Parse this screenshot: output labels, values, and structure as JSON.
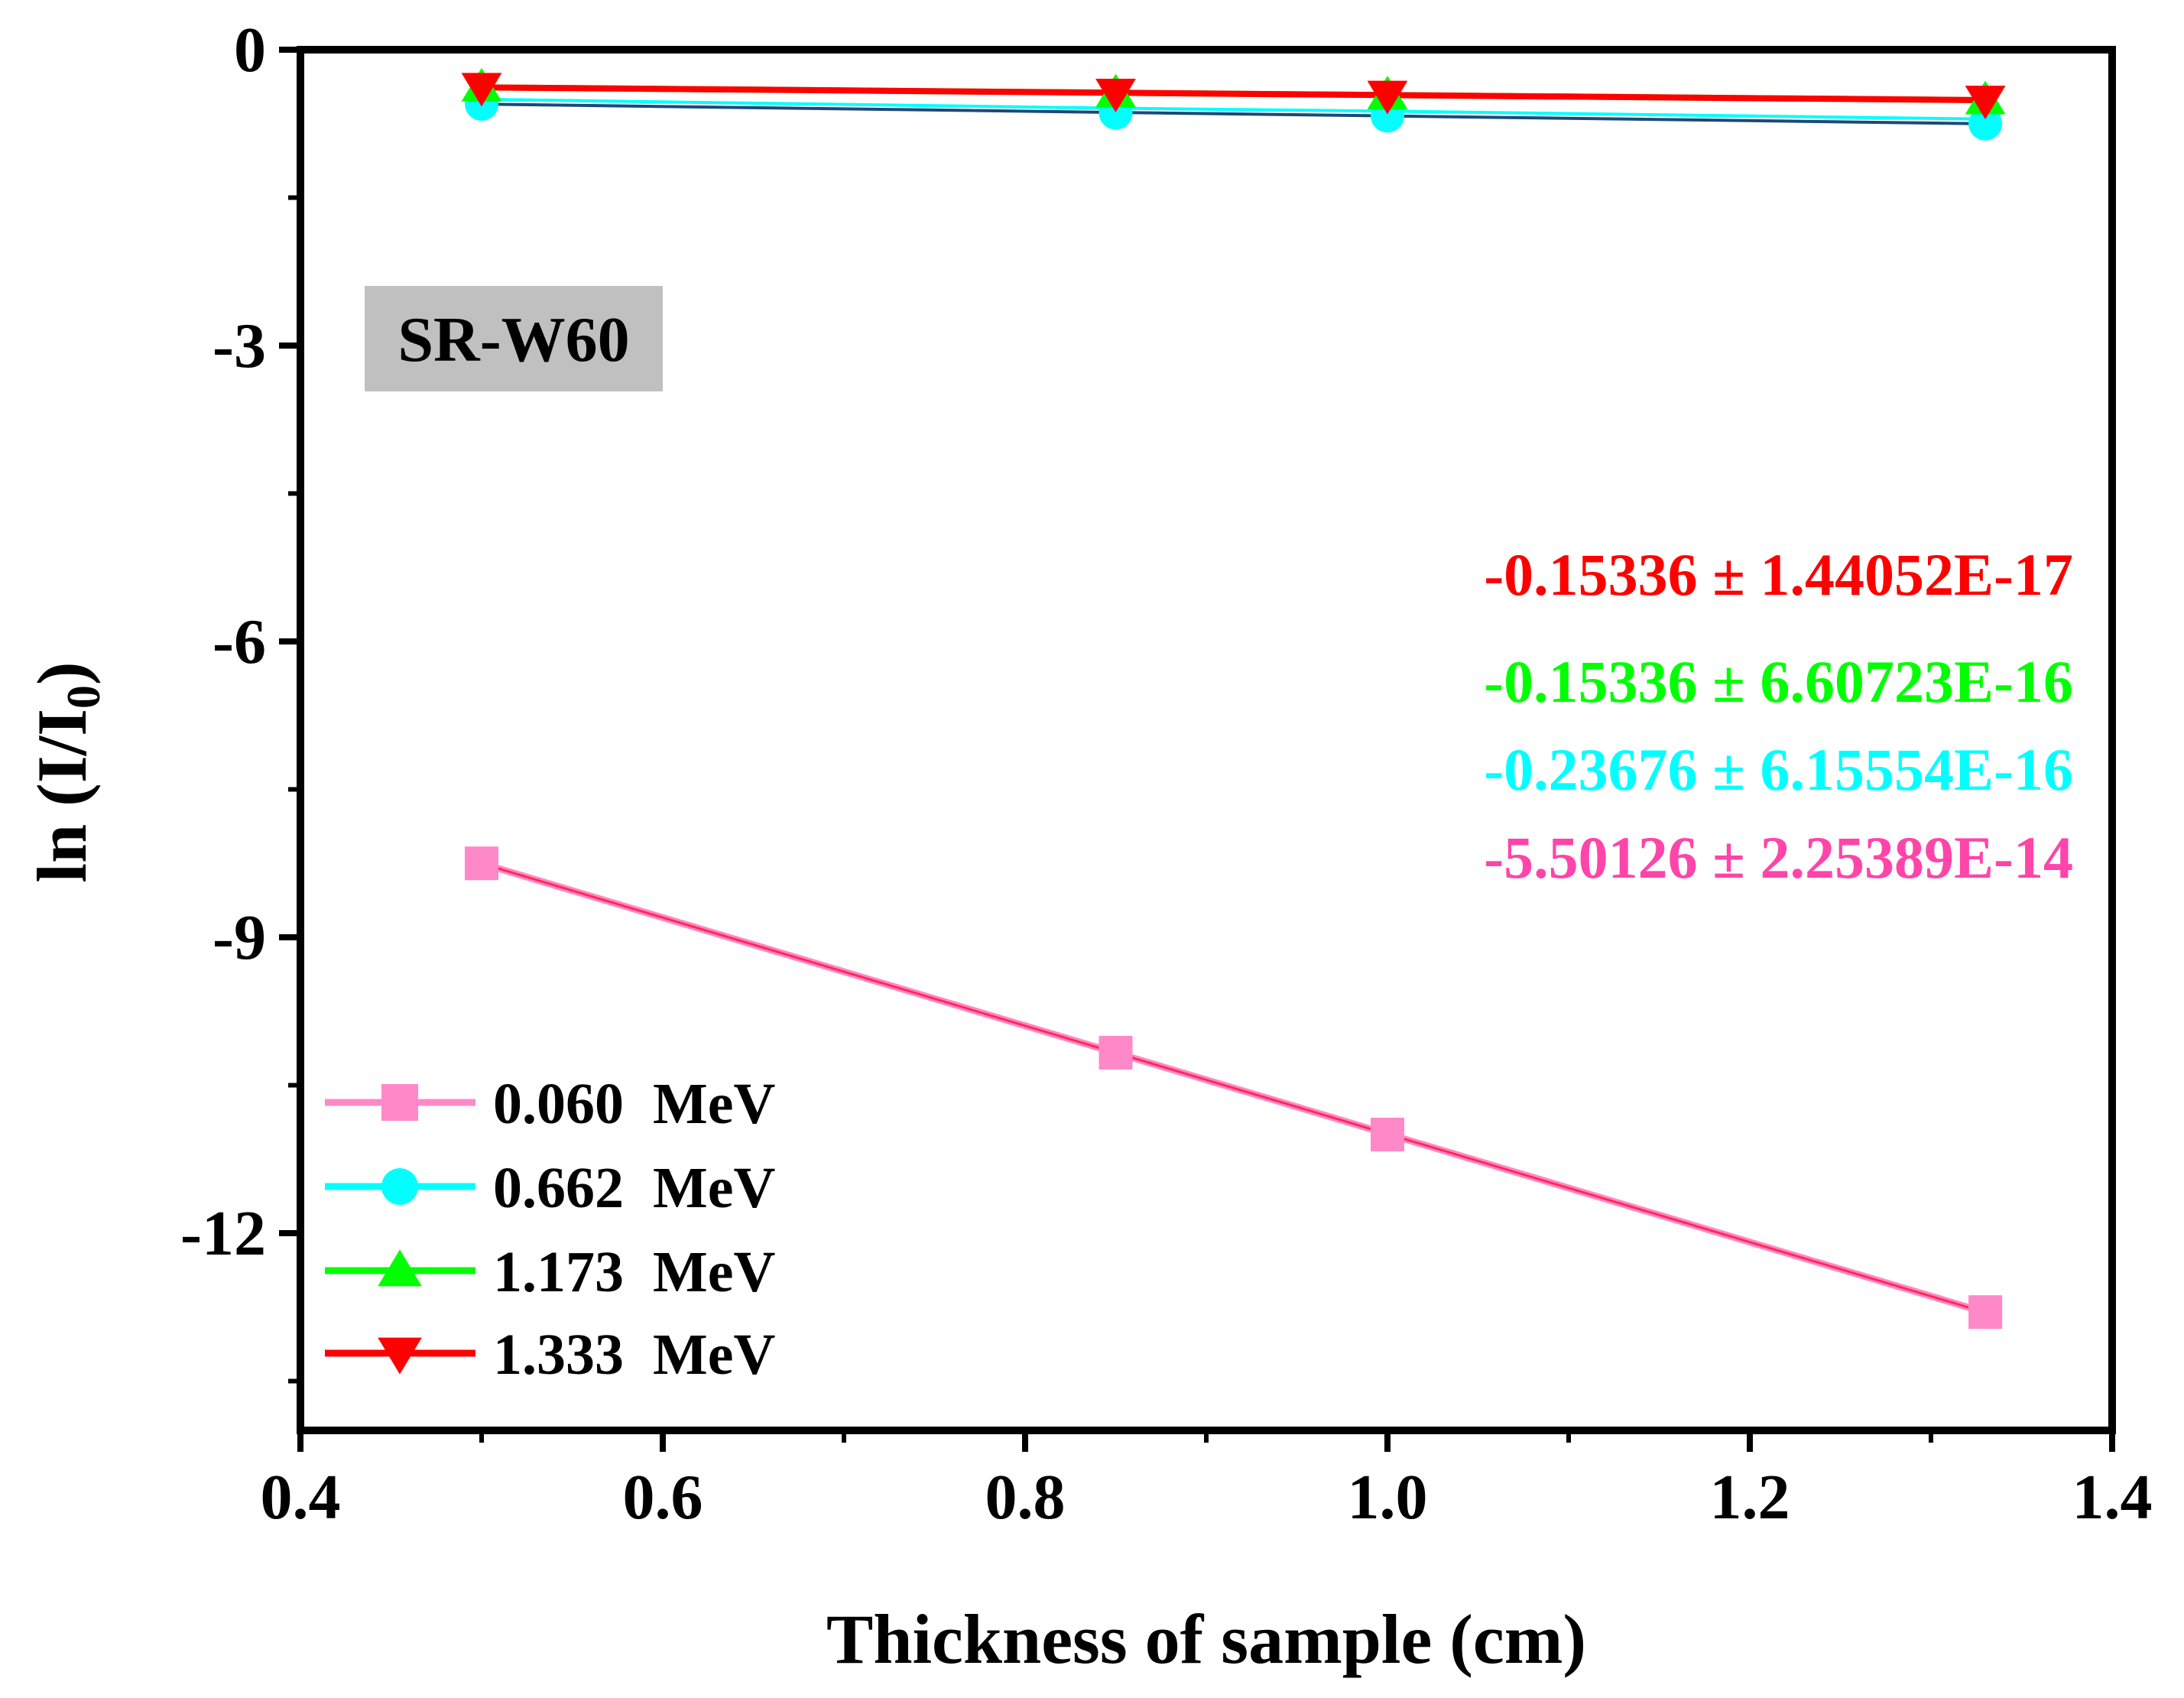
{
  "chart_data": {
    "type": "line",
    "title": "",
    "xlabel": "Thickness of sample (cm)",
    "ylabel_main": "ln (I/I",
    "ylabel_sub": "0",
    "ylabel_end": ")",
    "xlim": [
      0.4,
      1.4
    ],
    "ylim": [
      -14,
      0
    ],
    "x_ticks": [
      0.4,
      0.6,
      0.8,
      1.0,
      1.2,
      1.4
    ],
    "x_tick_labels": [
      "0.4",
      "0.6",
      "0.8",
      "1.0",
      "1.2",
      "1.4"
    ],
    "y_ticks": [
      0,
      -3,
      -6,
      -9,
      -12
    ],
    "y_tick_labels": [
      "0",
      "-3",
      "-6",
      "-9",
      "-12"
    ],
    "grid": false,
    "legend_position": "bottom-left",
    "sample_label": "SR-W60",
    "x": [
      0.5,
      0.85,
      1.0,
      1.33
    ],
    "series": [
      {
        "name": "0.060  MeV",
        "marker": "square",
        "color": "#ff88c8",
        "fit_color": "#ff2a55",
        "values": [
          -8.25,
          -10.17,
          -11.0,
          -12.8
        ]
      },
      {
        "name": "0.662  MeV",
        "marker": "circle",
        "color": "#00ffff",
        "fit_color": "#1a4a7a",
        "values": [
          -0.55,
          -0.64,
          -0.67,
          -0.75
        ]
      },
      {
        "name": "1.173  MeV",
        "marker": "triangle-up",
        "color": "#00ff00",
        "fit_color": "#00ff00",
        "values": [
          -0.38,
          -0.44,
          -0.46,
          -0.51
        ]
      },
      {
        "name": "1.333  MeV",
        "marker": "triangle-down",
        "color": "#ff0000",
        "fit_color": "#ff0000",
        "values": [
          -0.38,
          -0.44,
          -0.46,
          -0.51
        ]
      }
    ],
    "annotations": [
      {
        "text": "-0.15336 ± 1.44052E-17",
        "color": "#ff0000"
      },
      {
        "text": "-0.15336 ± 6.60723E-16",
        "color": "#00ff00"
      },
      {
        "text": "-0.23676 ± 6.15554E-16",
        "color": "#00ffff"
      },
      {
        "text": "-5.50126 ± 2.25389E-14",
        "color": "#ff44aa"
      }
    ]
  }
}
